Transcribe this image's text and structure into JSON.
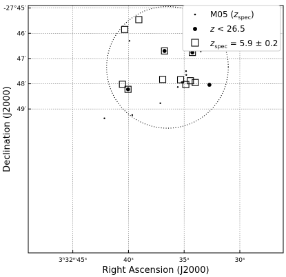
{
  "chart_data": {
    "type": "scatter",
    "xlabel": "Right Ascension (J2000)",
    "ylabel": "Declination (J2000)",
    "x_unit": "seconds of RA offset from 3h32m00s",
    "y_unit": "arcmin south of -27°45'",
    "xlim": [
      49.0,
      26.1
    ],
    "ylim": [
      9.7,
      -0.1
    ],
    "grid": true,
    "x_ticks": [
      {
        "value": 45,
        "label": "3ʰ32ᵐ45ˢ"
      },
      {
        "value": 40,
        "label": "40ˢ"
      },
      {
        "value": 35,
        "label": "35ˢ"
      },
      {
        "value": 30,
        "label": "30ˢ"
      }
    ],
    "y_ticks": [
      {
        "value": 0,
        "label": "-27°45′"
      },
      {
        "value": 1,
        "label": "46′"
      },
      {
        "value": 2,
        "label": "47′"
      },
      {
        "value": 3,
        "label": "48′"
      },
      {
        "value": 4,
        "label": "49′"
      }
    ],
    "circle": {
      "center_x": 36.5,
      "center_y": 2.35,
      "radius_x": 7.3,
      "radius_y": 1.6,
      "style": "dotted"
    },
    "legend": {
      "position": "top-right",
      "entries": [
        {
          "marker": "small-dot",
          "label": "M05 (z_spec)"
        },
        {
          "marker": "large-dot",
          "label": "z < 26.5"
        },
        {
          "marker": "open-square",
          "label": "z_spec = 5.9 ± 0.2"
        }
      ]
    },
    "series": [
      {
        "name": "M05 (z_spec)",
        "marker": "small-dot",
        "points": [
          [
            39.91,
            1.3
          ],
          [
            34.83,
            2.5
          ],
          [
            33.51,
            1.72
          ],
          [
            34.81,
            2.65
          ],
          [
            35.22,
            2.94
          ],
          [
            35.57,
            3.13
          ],
          [
            39.66,
            4.24
          ],
          [
            37.14,
            3.77
          ],
          [
            42.16,
            4.37
          ]
        ]
      },
      {
        "name": "z < 26.5",
        "marker": "large-dot",
        "points": [
          [
            36.76,
            1.7
          ],
          [
            34.26,
            1.76
          ],
          [
            40.04,
            3.22
          ],
          [
            32.73,
            3.04
          ]
        ]
      },
      {
        "name": "z_spec = 5.9 ± 0.2",
        "marker": "open-square",
        "points": [
          [
            39.07,
            0.46
          ],
          [
            40.34,
            0.85
          ],
          [
            36.76,
            1.7
          ],
          [
            34.26,
            1.76
          ],
          [
            36.93,
            2.83
          ],
          [
            35.32,
            2.84
          ],
          [
            34.0,
            2.95
          ],
          [
            34.44,
            2.88
          ],
          [
            40.54,
            3.02
          ],
          [
            40.04,
            3.22
          ],
          [
            34.85,
            3.03
          ]
        ]
      }
    ]
  }
}
